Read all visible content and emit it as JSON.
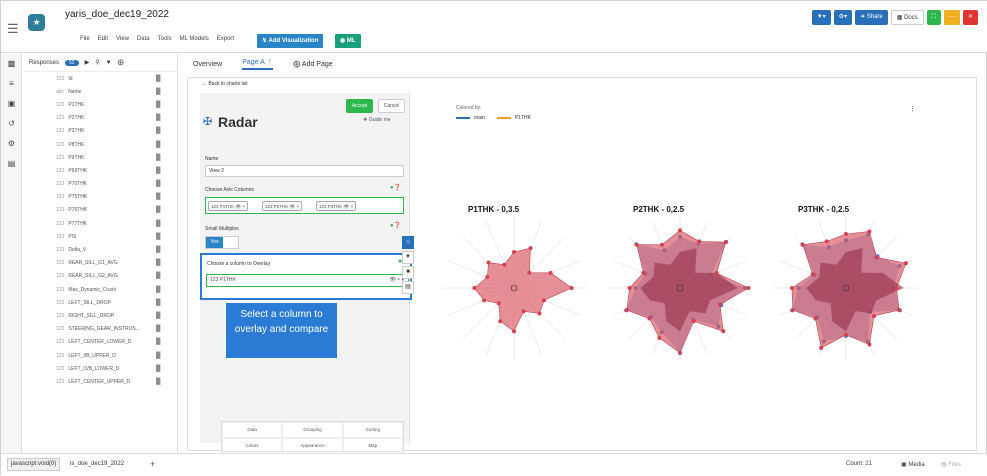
{
  "header": {
    "doc_title": "yaris_doe_dec19_2022",
    "menu": [
      "File",
      "Edit",
      "View",
      "Data",
      "Tools",
      "ML Models",
      "Export"
    ],
    "add_viz_label": "Add Visualization",
    "ml_label": "ML",
    "share_label": "Share",
    "docs_label": "Docs"
  },
  "vars": {
    "responses_label": "Responses",
    "responses_count": "52",
    "items": [
      {
        "type": "123",
        "name": "Id"
      },
      {
        "type": "abc",
        "name": "Name"
      },
      {
        "type": "123",
        "name": "P1THK"
      },
      {
        "type": "123",
        "name": "P2THK"
      },
      {
        "type": "123",
        "name": "P3THK"
      },
      {
        "type": "123",
        "name": "P8THK"
      },
      {
        "type": "123",
        "name": "P9THK"
      },
      {
        "type": "123",
        "name": "P69THK"
      },
      {
        "type": "123",
        "name": "P70THK"
      },
      {
        "type": "123",
        "name": "P75THK"
      },
      {
        "type": "123",
        "name": "P76THK"
      },
      {
        "type": "123",
        "name": "P77THK"
      },
      {
        "type": "123",
        "name": "PSI"
      },
      {
        "type": "123",
        "name": "Delta_V"
      },
      {
        "type": "123",
        "name": "REAR_SILL_G1_AVG"
      },
      {
        "type": "123",
        "name": "REAR_SILL_G2_AVG"
      },
      {
        "type": "123",
        "name": "Max_Dynamic_Crush"
      },
      {
        "type": "123",
        "name": "LEFT_SILL_DROP"
      },
      {
        "type": "123",
        "name": "RIGHT_SILL_DROP"
      },
      {
        "type": "123",
        "name": "STEERING_GEAR_INSTRUS..."
      },
      {
        "type": "123",
        "name": "LEFT_CENTER_LOWER_D"
      },
      {
        "type": "123",
        "name": "LEFT_I/B_UPPER_D"
      },
      {
        "type": "123",
        "name": "LEFT_O/B_LOWER_D"
      },
      {
        "type": "123",
        "name": "LEFT_CENTER_UPPER_D"
      }
    ]
  },
  "tabs": {
    "overview": "Overview",
    "page_a": "Page A",
    "add_page": "Add Page"
  },
  "config": {
    "back": "Back to charts list",
    "title": "Radar",
    "accept": "Accept",
    "cancel": "Cancel",
    "guide": "Guide me",
    "name_label": "Name",
    "name_value": "View 2",
    "axis_label": "Choose Axis Columns",
    "axis_chips": [
      "123 P1THK",
      "123 P2THK",
      "123 P3THK"
    ],
    "small_multiples_label": "Small Multiples",
    "small_multiples_value": "Yes",
    "overlay_label": "Choose a column to Overlay",
    "overlay_value": "123 P1THK",
    "callout": "Select a column to overlay and compare",
    "grid": [
      "Data",
      "Grouping",
      "Sorting",
      "Colors",
      "Appearance",
      "Map"
    ]
  },
  "chart": {
    "colored_by": "Colored by:",
    "legend": [
      {
        "name": "main",
        "color": "#2a6fba"
      },
      {
        "name": "P1THK",
        "color": "#f0a030"
      }
    ],
    "titles": [
      "P1THK - 0,3.5",
      "P2THK - 0,2.5",
      "P3THK - 0,2.5"
    ],
    "colors": {
      "fill": "#d9535f",
      "point": "#d9404f",
      "overlay_point": "#4a7bd4",
      "overlay_fill": "#6f9ad8"
    }
  },
  "chart_data": [
    {
      "type": "radar",
      "title": "P1THK - 0,3.5",
      "series": [
        {
          "values": [
            0.5,
            0.6,
            0.3,
            0.55,
            0.8,
            0.45,
            0.5,
            0.35,
            0.6,
            0.5,
            0.3,
            0.45,
            0.55,
            0.4,
            0.5,
            0.35
          ]
        }
      ]
    },
    {
      "type": "radar",
      "title": "P2THK - 0,2.5",
      "series": [
        {
          "values": [
            0.8,
            0.7,
            0.9,
            0.55,
            0.95,
            0.6,
            0.85,
            0.5,
            0.9,
            0.75,
            0.6,
            0.8,
            0.7,
            0.55,
            0.85,
            0.65
          ]
        }
      ]
    },
    {
      "type": "radar",
      "title": "P3THK - 0,2.5",
      "series": [
        {
          "values": [
            0.75,
            0.85,
            0.6,
            0.9,
            0.7,
            0.8,
            0.55,
            0.85,
            0.65,
            0.9,
            0.6,
            0.8,
            0.75,
            0.5,
            0.85,
            0.7
          ]
        }
      ]
    }
  ],
  "status": {
    "js": "javascript:void(0)",
    "tab": "is_doe_dec19_2022",
    "count": "Count: 21",
    "media": "Media",
    "files": "Files"
  }
}
